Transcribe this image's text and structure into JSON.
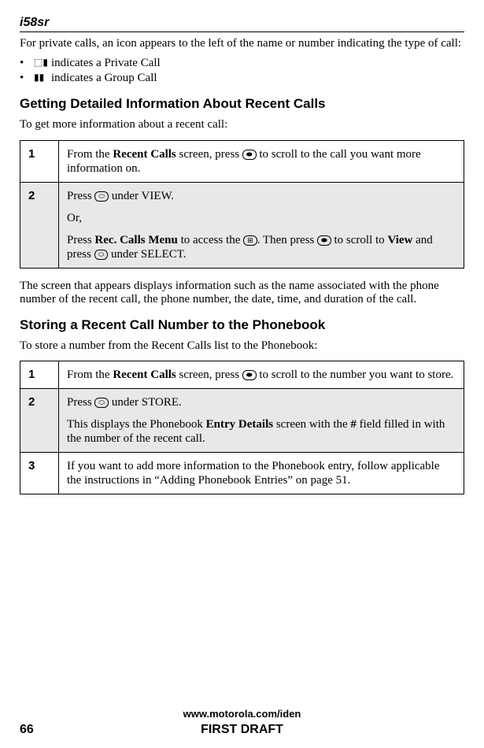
{
  "header": {
    "logo_text": "i58sr"
  },
  "intro": {
    "text": "For private calls, an icon appears to the left of the name or number indicating the type of call:",
    "bullets": [
      {
        "icon": "⬚▮",
        "text": "indicates a Private Call"
      },
      {
        "icon": "▮▮",
        "text": "indicates a Group Call"
      }
    ]
  },
  "section1": {
    "title": "Getting Detailed Information About Recent Calls",
    "lead": "To get more information about a recent call:",
    "steps": [
      {
        "num": "1",
        "shaded": false,
        "parts": [
          {
            "pre": "From the ",
            "bold1": "Recent Calls",
            "mid1": " screen, press ",
            "key1": "⬬",
            "post1": " to scroll to the call you want more information on."
          }
        ]
      },
      {
        "num": "2",
        "shaded": true,
        "parts": [
          {
            "pre": "Press ",
            "key1": "⬭",
            "post1": " under VIEW."
          },
          {
            "plain": "Or,"
          },
          {
            "pre": "Press ",
            "key1": "⊞",
            "mid1": " to access the ",
            "bold1": "Rec. Calls Menu",
            "mid2": ". Then press ",
            "key2": "⬬",
            "mid3": " to scroll to ",
            "bold2": "View",
            "mid4": " and press ",
            "key3": "⬭",
            "post1": " under SELECT."
          }
        ]
      }
    ],
    "after": "The screen that appears displays information such as the name associated with the phone number of the recent call, the phone number, the date, time, and duration of the call."
  },
  "section2": {
    "title": "Storing a Recent Call Number to the Phonebook",
    "lead": "To store a number from the Recent Calls list to the Phonebook:",
    "steps": [
      {
        "num": "1",
        "shaded": false,
        "parts": [
          {
            "pre": "From the ",
            "bold1": "Recent Calls",
            "mid1": " screen, press ",
            "key1": "⬬",
            "post1": " to scroll to the number you want to store."
          }
        ]
      },
      {
        "num": "2",
        "shaded": true,
        "parts": [
          {
            "pre": "Press ",
            "key1": "⬭",
            "post1": " under STORE."
          },
          {
            "pre": "This displays the Phonebook ",
            "bold1": "Entry Details",
            "mid1": " screen with the ",
            "bold2": "#",
            "post1": " field filled in with the number of the recent call."
          }
        ]
      },
      {
        "num": "3",
        "shaded": false,
        "parts": [
          {
            "plain": "If you want to add more information to the Phonebook entry, follow applicable the instructions in “Adding Phonebook Entries” on page 51."
          }
        ]
      }
    ]
  },
  "footer": {
    "url": "www.motorola.com/iden",
    "page": "66",
    "draft": "FIRST DRAFT"
  }
}
